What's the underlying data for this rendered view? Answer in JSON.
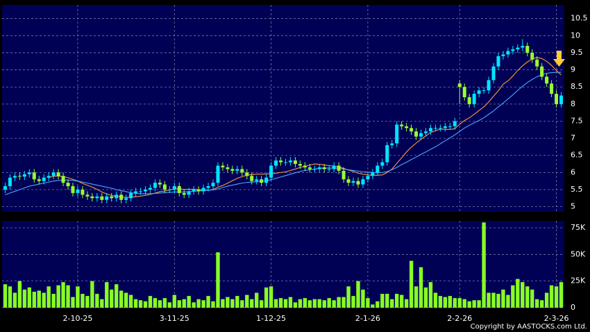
{
  "chart_data": {
    "type": "candlestick",
    "categories": [
      null,
      null,
      null,
      null,
      null,
      null,
      null,
      null,
      null,
      null,
      null,
      null,
      null,
      null,
      null,
      "2-10-25",
      null,
      null,
      null,
      null,
      null,
      null,
      null,
      null,
      null,
      null,
      null,
      null,
      null,
      null,
      null,
      null,
      null,
      null,
      null,
      "3-11-25",
      null,
      null,
      null,
      null,
      null,
      null,
      null,
      null,
      null,
      null,
      null,
      null,
      null,
      null,
      null,
      null,
      null,
      null,
      null,
      "1-12-25",
      null,
      null,
      null,
      null,
      null,
      null,
      null,
      null,
      null,
      null,
      null,
      null,
      null,
      null,
      null,
      null,
      null,
      null,
      null,
      "2-1-26",
      null,
      null,
      null,
      null,
      null,
      null,
      null,
      null,
      null,
      null,
      null,
      null,
      null,
      null,
      null,
      null,
      null,
      null,
      "2-2-26",
      null,
      null,
      null,
      null,
      null,
      null,
      null,
      null,
      null,
      null,
      null,
      null,
      null,
      null,
      null,
      null,
      null,
      null,
      null,
      "2-3-26",
      null
    ],
    "open": [
      5.5,
      5.6,
      5.85,
      5.9,
      5.88,
      5.95,
      6.0,
      5.8,
      5.75,
      5.85,
      5.9,
      6.0,
      5.9,
      5.7,
      5.6,
      5.4,
      5.5,
      5.35,
      5.3,
      5.25,
      5.3,
      5.2,
      5.3,
      5.25,
      5.35,
      5.2,
      5.25,
      5.4,
      5.45,
      5.45,
      5.5,
      5.55,
      5.7,
      5.65,
      5.5,
      5.5,
      5.6,
      5.4,
      5.35,
      5.45,
      5.5,
      5.45,
      5.55,
      5.6,
      5.7,
      6.2,
      6.15,
      6.1,
      6.05,
      6.1,
      6.0,
      5.9,
      5.75,
      5.8,
      5.7,
      5.85,
      6.2,
      6.35,
      6.3,
      6.3,
      6.35,
      6.25,
      6.2,
      6.15,
      6.1,
      6.1,
      6.15,
      6.1,
      6.1,
      6.2,
      6.05,
      5.8,
      5.7,
      5.75,
      5.65,
      5.8,
      5.9,
      6.0,
      6.2,
      6.3,
      6.8,
      6.85,
      7.4,
      7.35,
      7.3,
      7.2,
      7.05,
      7.15,
      7.2,
      7.3,
      7.3,
      7.3,
      7.35,
      7.35,
      8.6,
      8.5,
      8.2,
      8.0,
      8.3,
      8.4,
      8.4,
      8.7,
      9.1,
      9.4,
      9.45,
      9.55,
      9.6,
      9.65,
      9.7,
      9.5,
      9.3,
      9.1,
      8.8,
      8.6,
      8.3,
      8.0
    ],
    "high": [
      5.7,
      5.95,
      6.0,
      6.0,
      6.05,
      6.1,
      6.1,
      5.9,
      5.95,
      6.0,
      6.1,
      6.1,
      6.0,
      5.8,
      5.7,
      5.6,
      5.6,
      5.45,
      5.4,
      5.4,
      5.4,
      5.4,
      5.4,
      5.45,
      5.45,
      5.35,
      5.5,
      5.55,
      5.55,
      5.6,
      5.65,
      5.8,
      5.8,
      5.75,
      5.6,
      5.7,
      5.7,
      5.5,
      5.55,
      5.6,
      5.6,
      5.65,
      5.7,
      5.8,
      6.3,
      6.3,
      6.25,
      6.2,
      6.2,
      6.2,
      6.1,
      6.0,
      5.9,
      5.9,
      5.95,
      6.3,
      6.45,
      6.45,
      6.4,
      6.45,
      6.45,
      6.35,
      6.3,
      6.25,
      6.2,
      6.25,
      6.25,
      6.2,
      6.3,
      6.3,
      6.15,
      5.9,
      5.85,
      5.85,
      5.9,
      6.0,
      6.1,
      6.3,
      6.4,
      6.9,
      6.95,
      7.5,
      7.5,
      7.45,
      7.4,
      7.3,
      7.25,
      7.3,
      7.4,
      7.4,
      7.4,
      7.45,
      7.45,
      7.6,
      8.7,
      8.6,
      8.3,
      8.4,
      8.5,
      8.5,
      8.8,
      9.2,
      9.5,
      9.55,
      9.65,
      9.7,
      9.75,
      9.9,
      9.8,
      9.6,
      9.4,
      9.2,
      8.9,
      8.7,
      8.4,
      8.35
    ],
    "low": [
      5.4,
      5.5,
      5.75,
      5.78,
      5.78,
      5.85,
      5.7,
      5.65,
      5.65,
      5.75,
      5.8,
      5.8,
      5.6,
      5.5,
      5.3,
      5.3,
      5.25,
      5.2,
      5.15,
      5.15,
      5.1,
      5.1,
      5.15,
      5.15,
      5.1,
      5.1,
      5.15,
      5.3,
      5.35,
      5.35,
      5.4,
      5.45,
      5.55,
      5.4,
      5.4,
      5.4,
      5.3,
      5.25,
      5.25,
      5.35,
      5.35,
      5.35,
      5.45,
      5.5,
      5.6,
      6.05,
      6.0,
      5.95,
      5.95,
      5.9,
      5.8,
      5.65,
      5.65,
      5.6,
      5.6,
      5.75,
      6.1,
      6.2,
      6.2,
      6.2,
      6.15,
      6.1,
      6.05,
      6.0,
      6.0,
      6.0,
      6.0,
      6.0,
      6.0,
      5.95,
      5.7,
      5.6,
      5.6,
      5.55,
      5.55,
      5.7,
      5.8,
      5.9,
      6.1,
      6.2,
      6.7,
      6.75,
      7.25,
      7.2,
      7.1,
      6.95,
      6.95,
      7.05,
      7.1,
      7.2,
      7.2,
      7.2,
      7.25,
      7.25,
      8.0,
      8.1,
      7.9,
      7.9,
      8.2,
      8.3,
      8.3,
      8.6,
      9.0,
      9.3,
      9.35,
      9.45,
      9.5,
      9.55,
      9.4,
      9.2,
      9.0,
      8.7,
      8.5,
      8.2,
      7.9,
      7.9
    ],
    "close": [
      5.6,
      5.85,
      5.9,
      5.88,
      5.95,
      6.0,
      5.8,
      5.75,
      5.85,
      5.9,
      6.0,
      5.9,
      5.7,
      5.6,
      5.4,
      5.5,
      5.35,
      5.3,
      5.25,
      5.3,
      5.2,
      5.3,
      5.25,
      5.35,
      5.2,
      5.25,
      5.4,
      5.45,
      5.45,
      5.5,
      5.55,
      5.7,
      5.65,
      5.5,
      5.5,
      5.6,
      5.4,
      5.35,
      5.45,
      5.5,
      5.45,
      5.55,
      5.6,
      5.7,
      6.2,
      6.15,
      6.1,
      6.05,
      6.1,
      6.0,
      5.9,
      5.75,
      5.8,
      5.7,
      5.85,
      6.2,
      6.35,
      6.3,
      6.3,
      6.35,
      6.25,
      6.2,
      6.15,
      6.1,
      6.1,
      6.15,
      6.1,
      6.1,
      6.2,
      6.05,
      5.8,
      5.7,
      5.75,
      5.65,
      5.8,
      5.9,
      6.0,
      6.2,
      6.3,
      6.8,
      6.85,
      7.4,
      7.35,
      7.3,
      7.2,
      7.05,
      7.15,
      7.2,
      7.3,
      7.3,
      7.3,
      7.35,
      7.35,
      7.5,
      8.5,
      8.2,
      8.0,
      8.3,
      8.4,
      8.4,
      8.7,
      9.1,
      9.4,
      9.45,
      9.55,
      9.6,
      9.65,
      9.7,
      9.5,
      9.3,
      9.1,
      8.8,
      8.6,
      8.3,
      8.0,
      8.25
    ],
    "volume": [
      22000,
      20000,
      14000,
      25000,
      17000,
      19000,
      15000,
      16000,
      14000,
      20000,
      13000,
      21000,
      24000,
      21000,
      10000,
      20000,
      13000,
      11000,
      25000,
      13000,
      8000,
      24000,
      17000,
      22000,
      16000,
      14000,
      12000,
      8000,
      7000,
      6000,
      11000,
      9000,
      7000,
      9000,
      5000,
      12000,
      7000,
      8000,
      11000,
      5000,
      8000,
      7000,
      11000,
      6000,
      52000,
      8000,
      10000,
      8000,
      11000,
      7000,
      12000,
      8000,
      14000,
      7000,
      19000,
      20000,
      8000,
      9000,
      8000,
      10000,
      5000,
      8000,
      9000,
      7000,
      8000,
      8000,
      7000,
      9000,
      7000,
      10000,
      10000,
      20000,
      11000,
      25000,
      17000,
      9000,
      3000,
      6000,
      13000,
      13000,
      8000,
      13000,
      12000,
      8000,
      44000,
      20000,
      38000,
      19000,
      24000,
      14000,
      11000,
      10000,
      11000,
      9000,
      9000,
      8000,
      6000,
      7000,
      7000,
      80000,
      14000,
      14000,
      13000,
      17000,
      12000,
      21000,
      27000,
      24000,
      20000,
      17000,
      8000,
      7000,
      14000,
      21000,
      20000,
      24000
    ],
    "overlays": [
      {
        "color": "#ff9a3c",
        "values": [
          null,
          null,
          null,
          null,
          null,
          null,
          null,
          null,
          null,
          5.85,
          5.89,
          5.9,
          5.88,
          5.85,
          5.8,
          5.75,
          5.68,
          5.63,
          5.57,
          5.51,
          5.43,
          5.37,
          5.33,
          5.3,
          5.29,
          5.27,
          5.28,
          5.29,
          5.31,
          5.33,
          5.36,
          5.4,
          5.44,
          5.46,
          5.49,
          5.52,
          5.52,
          5.51,
          5.51,
          5.51,
          5.5,
          5.49,
          5.48,
          5.5,
          5.57,
          5.62,
          5.69,
          5.76,
          5.83,
          5.88,
          5.92,
          5.94,
          5.95,
          5.95,
          5.96,
          5.96,
          5.98,
          6.0,
          6.02,
          6.06,
          6.1,
          6.15,
          6.18,
          6.22,
          6.25,
          6.24,
          6.22,
          6.2,
          6.19,
          6.16,
          6.12,
          6.07,
          6.03,
          5.98,
          5.95,
          5.93,
          5.92,
          5.92,
          5.93,
          6.0,
          6.1,
          6.27,
          6.43,
          6.6,
          6.74,
          6.86,
          6.97,
          7.07,
          7.17,
          7.22,
          7.27,
          7.26,
          7.26,
          7.28,
          7.41,
          7.52,
          7.6,
          7.7,
          7.81,
          7.92,
          8.06,
          8.23,
          8.39,
          8.58,
          8.68,
          8.82,
          8.98,
          9.12,
          9.23,
          9.32,
          9.36,
          9.33,
          9.25,
          9.13,
          8.98,
          8.85
        ]
      },
      {
        "color": "#4aa8ff",
        "values": [
          5.35,
          5.4,
          5.45,
          5.5,
          5.55,
          5.6,
          5.63,
          5.66,
          5.69,
          5.72,
          5.75,
          5.77,
          5.78,
          5.78,
          5.77,
          5.75,
          5.72,
          5.69,
          5.66,
          5.63,
          5.6,
          5.57,
          5.54,
          5.5,
          5.47,
          5.44,
          5.41,
          5.39,
          5.38,
          5.38,
          5.38,
          5.39,
          5.4,
          5.41,
          5.42,
          5.43,
          5.43,
          5.43,
          5.44,
          5.45,
          5.46,
          5.47,
          5.48,
          5.49,
          5.52,
          5.56,
          5.6,
          5.63,
          5.66,
          5.69,
          5.71,
          5.72,
          5.73,
          5.74,
          5.76,
          5.79,
          5.83,
          5.87,
          5.91,
          5.95,
          5.99,
          6.03,
          6.06,
          6.08,
          6.1,
          6.12,
          6.13,
          6.13,
          6.13,
          6.12,
          6.1,
          6.08,
          6.06,
          6.04,
          6.02,
          6.01,
          6.0,
          5.99,
          6.0,
          6.03,
          6.08,
          6.15,
          6.23,
          6.3,
          6.38,
          6.45,
          6.53,
          6.6,
          6.68,
          6.75,
          6.84,
          6.93,
          7.01,
          7.1,
          7.2,
          7.3,
          7.38,
          7.45,
          7.52,
          7.6,
          7.7,
          7.8,
          7.92,
          8.03,
          8.15,
          8.27,
          8.4,
          8.52,
          8.63,
          8.72,
          8.8,
          8.86,
          8.9,
          8.92,
          8.93,
          8.93
        ]
      }
    ],
    "up_color": "#00e5ff",
    "down_color": "#99ff33",
    "volume_color": "#88ff22",
    "ylim": [
      4.85,
      10.9
    ],
    "yticks": [
      5,
      5.5,
      6,
      6.5,
      7,
      7.5,
      8,
      8.5,
      9,
      9.5,
      10,
      10.5
    ],
    "volume_ylim": [
      0,
      81500
    ],
    "volume_yticks": [
      0,
      {
        "value": 25000,
        "label": "25K"
      },
      {
        "value": 50000,
        "label": "50K"
      },
      {
        "value": 75000,
        "label": "75K"
      }
    ],
    "grid": true,
    "copyright": "Copyright by AASTOCKS.com Ltd."
  }
}
